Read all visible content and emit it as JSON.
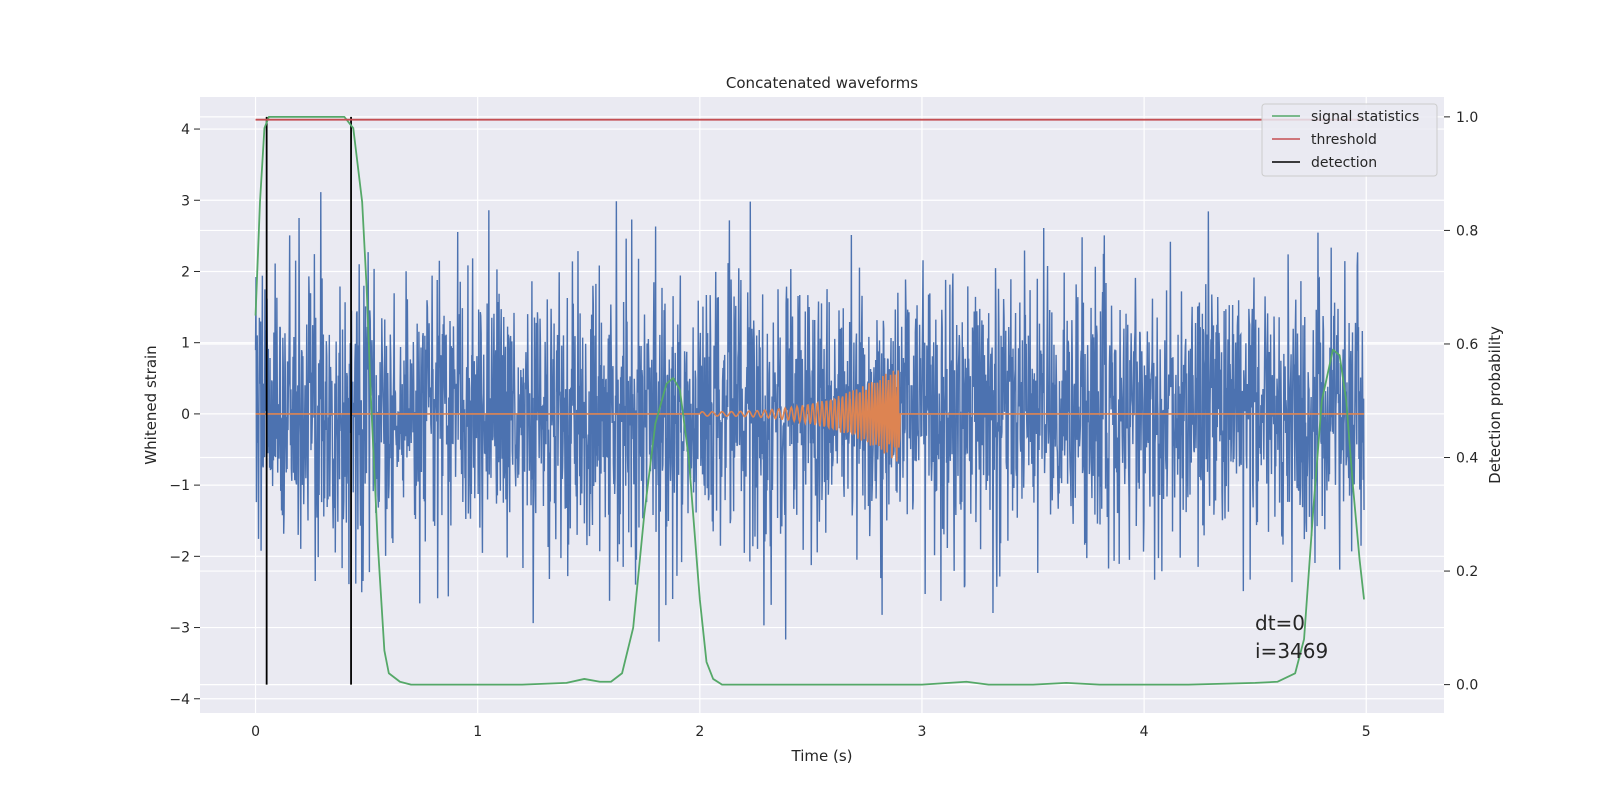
{
  "chart_data": {
    "type": "line",
    "title": "Concatenated waveforms",
    "xlabel": "Time (s)",
    "ylabel": "Whitened strain",
    "ylabel_right": "Detection probability",
    "xlim": [
      -0.25,
      5.35
    ],
    "ylim": [
      -4.2,
      4.45
    ],
    "ylim_right": [
      -0.05,
      1.035
    ],
    "x_ticks": [
      0,
      1,
      2,
      3,
      4,
      5
    ],
    "x_tick_labels": [
      "0",
      "1",
      "2",
      "3",
      "4",
      "5"
    ],
    "y_ticks": [
      -4,
      -3,
      -2,
      -1,
      0,
      1,
      2,
      3,
      4
    ],
    "y_tick_labels": [
      "−4",
      "−3",
      "−2",
      "−1",
      "0",
      "1",
      "2",
      "3",
      "4"
    ],
    "y_right_ticks": [
      0.0,
      0.2,
      0.4,
      0.6,
      0.8,
      1.0
    ],
    "y_right_tick_labels": [
      "0.0",
      "0.2",
      "0.4",
      "0.6",
      "0.8",
      "1.0"
    ],
    "grid": true,
    "legend_position": "top-right",
    "colors": {
      "strain": "#4c72b0",
      "waveform": "#dd8452",
      "signal_statistics": "#55a868",
      "threshold": "#c44e52",
      "detection": "#000000"
    },
    "legend": [
      "signal statistics",
      "threshold",
      "detection"
    ],
    "series": [
      {
        "name": "signal statistics",
        "axis": "right",
        "x": [
          0.0,
          0.02,
          0.04,
          0.06,
          0.1,
          0.2,
          0.3,
          0.4,
          0.44,
          0.48,
          0.5,
          0.52,
          0.55,
          0.58,
          0.6,
          0.65,
          0.7,
          0.9,
          1.2,
          1.4,
          1.48,
          1.55,
          1.6,
          1.65,
          1.7,
          1.75,
          1.8,
          1.85,
          1.88,
          1.91,
          1.95,
          2.0,
          2.03,
          2.06,
          2.1,
          2.3,
          2.6,
          3.0,
          3.2,
          3.3,
          3.5,
          3.65,
          3.8,
          4.2,
          4.5,
          4.6,
          4.68,
          4.72,
          4.76,
          4.8,
          4.85,
          4.88,
          4.91,
          4.94,
          4.97,
          4.99
        ],
        "y": [
          0.65,
          0.85,
          0.98,
          1.0,
          1.0,
          1.0,
          1.0,
          1.0,
          0.98,
          0.85,
          0.7,
          0.5,
          0.25,
          0.06,
          0.02,
          0.005,
          0.0,
          0.0,
          0.0,
          0.003,
          0.01,
          0.005,
          0.005,
          0.02,
          0.1,
          0.3,
          0.46,
          0.53,
          0.54,
          0.52,
          0.4,
          0.15,
          0.04,
          0.01,
          0.0,
          0.0,
          0.0,
          0.0,
          0.005,
          0.0,
          0.0,
          0.003,
          0.0,
          0.0,
          0.003,
          0.005,
          0.02,
          0.08,
          0.3,
          0.5,
          0.59,
          0.58,
          0.5,
          0.35,
          0.22,
          0.15
        ]
      },
      {
        "name": "threshold",
        "axis": "right",
        "x": [
          0.0,
          4.99
        ],
        "y": [
          0.995,
          0.995
        ]
      }
    ],
    "detections_x": [
      0.05,
      0.43
    ],
    "noise": {
      "x_range": [
        0.0,
        4.99
      ],
      "sigma": 0.95,
      "clip": [
        -3.85,
        3.75
      ]
    },
    "chirp": {
      "x_start": 2.0,
      "x_end": 2.9,
      "amplitude_end": 0.7
    },
    "annotations": [
      "dt=0",
      "i=3469"
    ]
  }
}
